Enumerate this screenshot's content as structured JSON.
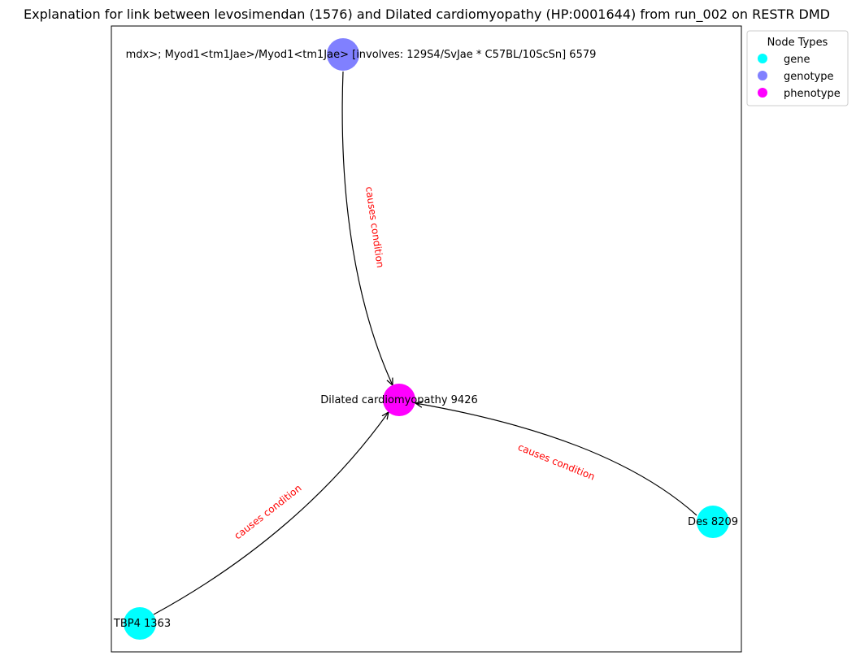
{
  "title": "Explanation for link between levosimendan (1576) and Dilated cardiomyopathy (HP:0001644) from run_002 on RESTR DMD",
  "legend": {
    "title": "Node Types",
    "items": [
      {
        "label": "gene",
        "color": "#00ffff"
      },
      {
        "label": "genotype",
        "color": "#8080ff"
      },
      {
        "label": "phenotype",
        "color": "#ff00ff"
      }
    ]
  },
  "nodes": {
    "genotype": {
      "label": "mdx>; Myod1<tm1Jae>/Myod1<tm1Jae> [involves: 129S4/SvJae * C57BL/10ScSn] 6579",
      "type": "genotype",
      "color": "#8080ff"
    },
    "phenotype": {
      "label": "Dilated cardiomyopathy 9426",
      "type": "phenotype",
      "color": "#ff00ff"
    },
    "des": {
      "label": "Des 8209",
      "type": "gene",
      "color": "#00ffff"
    },
    "ltbp4": {
      "label": "TBP4 1363",
      "type": "gene",
      "color": "#00ffff"
    }
  },
  "edges": [
    {
      "from": "genotype",
      "to": "phenotype",
      "label": "causes condition"
    },
    {
      "from": "des",
      "to": "phenotype",
      "label": "causes condition"
    },
    {
      "from": "ltbp4",
      "to": "phenotype",
      "label": "causes condition"
    }
  ]
}
